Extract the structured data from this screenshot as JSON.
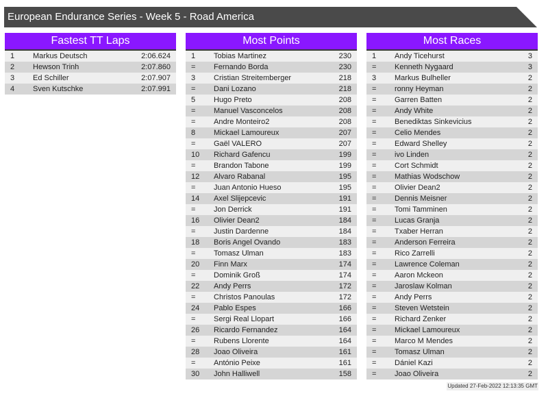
{
  "title": "European Endurance Series - Week 5 - Road America",
  "panels": [
    {
      "title": "Fastest TT Laps",
      "rows": [
        [
          "1",
          "Markus Deutsch",
          "2:06.624"
        ],
        [
          "2",
          "Hewson Trinh",
          "2:07.860"
        ],
        [
          "3",
          "Ed Schiller",
          "2:07.907"
        ],
        [
          "4",
          "Sven Kutschke",
          "2:07.991"
        ]
      ]
    },
    {
      "title": "Most Points",
      "rows": [
        [
          "1",
          "Tobias Martinez",
          "230"
        ],
        [
          "=",
          "Fernando Borda",
          "230"
        ],
        [
          "3",
          "Cristian Streitemberger",
          "218"
        ],
        [
          "=",
          "Dani Lozano",
          "218"
        ],
        [
          "5",
          "Hugo Preto",
          "208"
        ],
        [
          "=",
          "Manuel Vasconcelos",
          "208"
        ],
        [
          "=",
          "Andre Monteiro2",
          "208"
        ],
        [
          "8",
          "Mickael Lamoureux",
          "207"
        ],
        [
          "=",
          "Gaël VALERO",
          "207"
        ],
        [
          "10",
          "Richard Gafencu",
          "199"
        ],
        [
          "=",
          "Brandon Tabone",
          "199"
        ],
        [
          "12",
          "Alvaro Rabanal",
          "195"
        ],
        [
          "=",
          "Juan Antonio Hueso",
          "195"
        ],
        [
          "14",
          "Axel Slijepcevic",
          "191"
        ],
        [
          "=",
          "Jon Derrick",
          "191"
        ],
        [
          "16",
          "Olivier Dean2",
          "184"
        ],
        [
          "=",
          "Justin Dardenne",
          "184"
        ],
        [
          "18",
          "Boris Angel Ovando",
          "183"
        ],
        [
          "=",
          "Tomasz Ulman",
          "183"
        ],
        [
          "20",
          "Finn Marx",
          "174"
        ],
        [
          "=",
          "Dominik Groß",
          "174"
        ],
        [
          "22",
          "Andy Perrs",
          "172"
        ],
        [
          "=",
          "Christos Panoulas",
          "172"
        ],
        [
          "24",
          "Pablo Espes",
          "166"
        ],
        [
          "=",
          "Sergi Real Llopart",
          "166"
        ],
        [
          "26",
          "Ricardo Fernandez",
          "164"
        ],
        [
          "=",
          "Rubens Llorente",
          "164"
        ],
        [
          "28",
          "Joao Oliveira",
          "161"
        ],
        [
          "=",
          "António Peixe",
          "161"
        ],
        [
          "30",
          "John Halliwell",
          "158"
        ]
      ]
    },
    {
      "title": "Most Races",
      "rows": [
        [
          "1",
          "Andy Ticehurst",
          "3"
        ],
        [
          "=",
          "Kenneth Nygaard",
          "3"
        ],
        [
          "3",
          "Markus Bulheller",
          "2"
        ],
        [
          "=",
          "ronny Heyman",
          "2"
        ],
        [
          "=",
          "Garren Batten",
          "2"
        ],
        [
          "=",
          "Andy White",
          "2"
        ],
        [
          "=",
          "Benediktas Sinkevicius",
          "2"
        ],
        [
          "=",
          "Celio Mendes",
          "2"
        ],
        [
          "=",
          "Edward Shelley",
          "2"
        ],
        [
          "=",
          "ivo Linden",
          "2"
        ],
        [
          "=",
          "Cort Schmidt",
          "2"
        ],
        [
          "=",
          "Mathias Wodschow",
          "2"
        ],
        [
          "=",
          "Olivier Dean2",
          "2"
        ],
        [
          "=",
          "Dennis Meisner",
          "2"
        ],
        [
          "=",
          "Tomi Tamminen",
          "2"
        ],
        [
          "=",
          "Lucas Granja",
          "2"
        ],
        [
          "=",
          "Txaber Herran",
          "2"
        ],
        [
          "=",
          "Anderson Ferreira",
          "2"
        ],
        [
          "=",
          "Rico Zarrelli",
          "2"
        ],
        [
          "=",
          "Lawrence Coleman",
          "2"
        ],
        [
          "=",
          "Aaron Mckeon",
          "2"
        ],
        [
          "=",
          "Jaroslaw Kolman",
          "2"
        ],
        [
          "=",
          "Andy Perrs",
          "2"
        ],
        [
          "=",
          "Steven Wetstein",
          "2"
        ],
        [
          "=",
          "Richard Zenker",
          "2"
        ],
        [
          "=",
          "Mickael Lamoureux",
          "2"
        ],
        [
          "=",
          "Marco M Mendes",
          "2"
        ],
        [
          "=",
          "Tomasz Ulman",
          "2"
        ],
        [
          "=",
          "Dániel Kazi",
          "2"
        ],
        [
          "=",
          "Joao Oliveira",
          "2"
        ]
      ]
    }
  ],
  "updated": "Updated 27-Feb-2022 12:13:35 GMT",
  "colors": {
    "header": "#8a17ff",
    "titlebar": "#4a4a4a"
  }
}
